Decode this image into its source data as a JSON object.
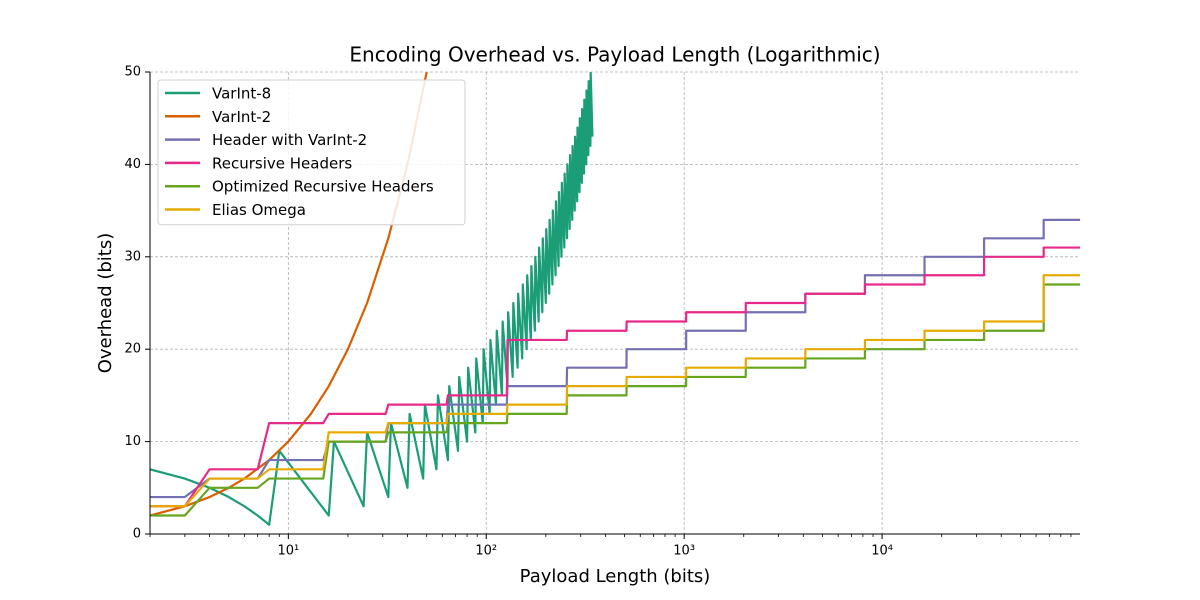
{
  "chart_data": {
    "type": "line",
    "title": "Encoding Overhead vs. Payload Length (Logarithmic)",
    "x_label": "Payload Length (bits)",
    "y_label": "Overhead (bits)",
    "xscale": "log",
    "xlim": [
      2,
      100000
    ],
    "ylim": [
      0,
      50
    ],
    "xticks": [
      {
        "value": 10,
        "label": "10¹"
      },
      {
        "value": 100,
        "label": "10²"
      },
      {
        "value": 1000,
        "label": "10³"
      },
      {
        "value": 10000,
        "label": "10⁴"
      }
    ],
    "xminorticks": [
      2,
      3,
      4,
      5,
      6,
      7,
      8,
      9,
      20,
      30,
      40,
      50,
      60,
      70,
      80,
      90,
      200,
      300,
      400,
      500,
      600,
      700,
      800,
      900,
      2000,
      3000,
      4000,
      5000,
      6000,
      7000,
      8000,
      9000,
      20000,
      30000,
      40000,
      50000,
      60000,
      70000,
      80000,
      90000
    ],
    "yticks": [
      0,
      10,
      20,
      30,
      40,
      50
    ],
    "grid": true,
    "legend": "upper left",
    "series": [
      {
        "name": "VarInt-8",
        "color": "#1b9e77",
        "x": [
          2,
          3,
          4,
          5,
          6,
          7,
          8,
          9,
          16,
          17,
          24,
          25,
          32,
          33,
          40,
          41,
          48,
          49,
          56,
          57,
          64,
          65,
          72,
          73,
          80,
          81,
          88,
          89,
          96,
          97,
          104,
          105,
          112,
          113,
          120,
          121,
          128,
          129,
          136,
          137,
          144,
          145,
          152,
          153,
          160,
          161,
          168,
          169,
          176,
          177,
          184,
          185,
          192,
          193,
          200,
          201,
          208,
          209,
          216,
          217,
          224,
          225,
          232,
          233,
          240,
          241,
          248,
          249,
          256,
          257,
          264,
          265,
          272,
          273,
          280,
          281,
          288,
          289,
          296,
          297,
          304,
          305,
          312,
          313,
          320,
          321,
          328,
          329,
          336,
          337,
          344
        ],
        "values": [
          7,
          6,
          5,
          4,
          3,
          2,
          1,
          9,
          2,
          10,
          3,
          11,
          4,
          12,
          5,
          13,
          6,
          14,
          7,
          15,
          8,
          16,
          9,
          17,
          10,
          18,
          11,
          19,
          12,
          20,
          13,
          21,
          14,
          22,
          15,
          23,
          16,
          24,
          17,
          25,
          18,
          26,
          19,
          27,
          20,
          28,
          21,
          29,
          22,
          30,
          23,
          31,
          24,
          32,
          25,
          33,
          26,
          34,
          27,
          35,
          28,
          36,
          29,
          37,
          30,
          38,
          31,
          39,
          32,
          40,
          33,
          41,
          34,
          42,
          35,
          43,
          36,
          44,
          37,
          45,
          38,
          46,
          39,
          47,
          40,
          48,
          41,
          49,
          42,
          50,
          43
        ]
      },
      {
        "name": "VarInt-2",
        "color": "#d95f02",
        "x": [
          2,
          3,
          4,
          5,
          6,
          8,
          10,
          13,
          16,
          20,
          25,
          32,
          40,
          50
        ],
        "values": [
          2,
          3,
          4,
          5,
          6,
          8,
          10,
          13,
          16,
          20,
          25,
          32,
          40,
          50
        ]
      },
      {
        "name": "Header with VarInt-2",
        "color": "#7570b3",
        "x": [
          2,
          3,
          4,
          7,
          8,
          15,
          16,
          31,
          32,
          63,
          64,
          127,
          128,
          255,
          256,
          511,
          512,
          1023,
          1024,
          2047,
          2048,
          4095,
          4096,
          8191,
          8192,
          16383,
          16384,
          32767,
          32768,
          65535,
          65536,
          100000
        ],
        "values": [
          4,
          4,
          6,
          6,
          8,
          8,
          10,
          10,
          12,
          12,
          14,
          14,
          16,
          16,
          18,
          18,
          20,
          20,
          22,
          22,
          24,
          24,
          26,
          26,
          28,
          28,
          30,
          30,
          32,
          32,
          34,
          34
        ]
      },
      {
        "name": "Recursive Headers",
        "color": "#e7298a",
        "x": [
          2,
          3,
          4,
          7,
          8,
          15,
          16,
          31,
          32,
          63,
          64,
          127,
          128,
          255,
          256,
          511,
          512,
          1023,
          1024,
          2047,
          2048,
          4095,
          4096,
          8191,
          8192,
          16383,
          16384,
          32767,
          32768,
          65535,
          65536,
          100000
        ],
        "values": [
          3,
          3,
          7,
          7,
          12,
          12,
          13,
          13,
          14,
          14,
          15,
          15,
          21,
          21,
          22,
          22,
          23,
          23,
          24,
          24,
          25,
          25,
          26,
          26,
          27,
          27,
          28,
          28,
          30,
          30,
          31,
          31
        ]
      },
      {
        "name": "Optimized Recursive Headers",
        "color": "#66a61e",
        "x": [
          2,
          3,
          4,
          7,
          8,
          15,
          16,
          31,
          32,
          63,
          64,
          127,
          128,
          255,
          256,
          511,
          512,
          1023,
          1024,
          2047,
          2048,
          4095,
          4096,
          8191,
          8192,
          16383,
          16384,
          32767,
          32768,
          65535,
          65536,
          100000
        ],
        "values": [
          2,
          2,
          5,
          5,
          6,
          6,
          10,
          10,
          11,
          11,
          12,
          12,
          13,
          13,
          15,
          15,
          16,
          16,
          17,
          17,
          18,
          18,
          19,
          19,
          20,
          20,
          21,
          21,
          22,
          22,
          27,
          27
        ]
      },
      {
        "name": "Elias Omega",
        "color": "#e6ab02",
        "x": [
          2,
          3,
          4,
          7,
          8,
          15,
          16,
          31,
          32,
          63,
          64,
          127,
          128,
          255,
          256,
          511,
          512,
          1023,
          1024,
          2047,
          2048,
          4095,
          4096,
          8191,
          8192,
          16383,
          16384,
          32767,
          32768,
          65535,
          65536,
          100000
        ],
        "values": [
          3,
          3,
          6,
          6,
          7,
          7,
          11,
          11,
          12,
          12,
          13,
          13,
          14,
          14,
          16,
          16,
          17,
          17,
          18,
          18,
          19,
          19,
          20,
          20,
          21,
          21,
          22,
          22,
          23,
          23,
          28,
          28
        ]
      }
    ]
  }
}
